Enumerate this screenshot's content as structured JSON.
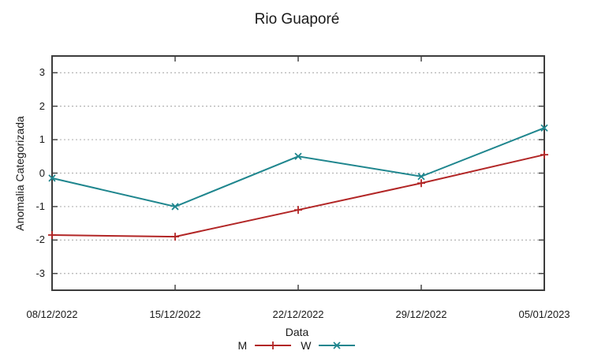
{
  "chart_data": {
    "type": "line",
    "title": "Rio Guaporé",
    "xlabel": "Data",
    "ylabel": "Anomalia Categorizada",
    "x_labels": [
      "08/12/2022",
      "15/12/2022",
      "22/12/2022",
      "29/12/2022",
      "05/01/2023"
    ],
    "series": [
      {
        "name": "M",
        "marker": "plus",
        "color": "#b22626",
        "values": [
          -1.85,
          -1.9,
          -1.1,
          -0.3,
          0.55
        ]
      },
      {
        "name": "W",
        "marker": "cross",
        "color": "#1f868e",
        "values": [
          -0.15,
          -1.0,
          0.5,
          -0.1,
          1.35
        ]
      }
    ],
    "ylim": [
      -3.5,
      3.5
    ],
    "yticks": [
      3,
      2,
      1,
      0,
      -1,
      -2,
      -3
    ],
    "grid": "horizontal-dashed",
    "legend_position": "bottom-center"
  },
  "colors": {
    "frame": "#3c3c3c",
    "grid": "#b4b4b4",
    "text": "#1a1a1a",
    "background": "#ffffff"
  }
}
